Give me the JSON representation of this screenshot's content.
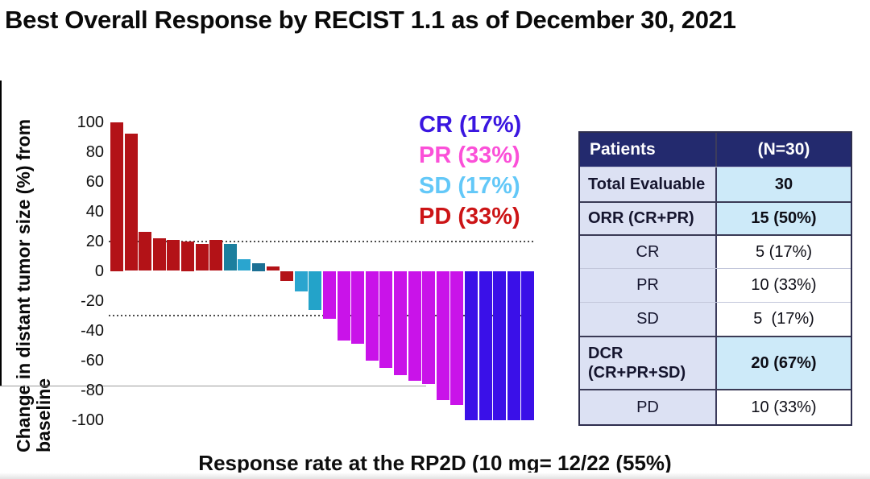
{
  "title": "Best Overall Response by RECIST 1.1 as of December 30, 2021",
  "caption": "Response rate at the RP2D (10 mg= 12/22 (55%)",
  "chart_data": {
    "type": "bar",
    "subtype": "waterfall",
    "title": "",
    "xlabel": "",
    "ylabel": "Change in distant tumor size (%) from\nbaseline",
    "ylim": [
      -100,
      100
    ],
    "yticks": [
      100,
      80,
      60,
      40,
      20,
      0,
      -20,
      -40,
      -60,
      -80,
      -100
    ],
    "reference_lines": [
      20,
      -30
    ],
    "grid": false,
    "legend_position": "top-right-inside",
    "legend": [
      {
        "label": "CR (17%)",
        "color": "#3a16e0"
      },
      {
        "label": "PR (33%)",
        "color": "#fb50d8"
      },
      {
        "label": "SD (17%)",
        "color": "#63c8f8"
      },
      {
        "label": "PD (33%)",
        "color": "#cc1416"
      }
    ],
    "category_colors": {
      "PD": "#b31217",
      "PR": "#c913e9",
      "CR": "#3a10e8",
      "SD": "#23a3c9"
    },
    "bars": [
      {
        "value": 100,
        "category": "PD",
        "color": "#b31217"
      },
      {
        "value": 92,
        "category": "PD",
        "color": "#b31217"
      },
      {
        "value": 26,
        "category": "PD",
        "color": "#b31217"
      },
      {
        "value": 22,
        "category": "PD",
        "color": "#b31217"
      },
      {
        "value": 21,
        "category": "PD",
        "color": "#b31217"
      },
      {
        "value": 20,
        "category": "PD",
        "color": "#b31217"
      },
      {
        "value": 18,
        "category": "PD",
        "color": "#b31217"
      },
      {
        "value": 21,
        "category": "PD",
        "color": "#b31217"
      },
      {
        "value": 18,
        "category": "SD",
        "color": "#1c7f9e"
      },
      {
        "value": 8,
        "category": "SD",
        "color": "#2aa5cf"
      },
      {
        "value": 5,
        "category": "SD",
        "color": "#1b7094"
      },
      {
        "value": 3,
        "category": "PD",
        "color": "#b31217"
      },
      {
        "value": -7,
        "category": "PD",
        "color": "#b31217"
      },
      {
        "value": -14,
        "category": "SD",
        "color": "#2aa5cf"
      },
      {
        "value": -26,
        "category": "SD",
        "color": "#23a3c9"
      },
      {
        "value": -32,
        "category": "PR",
        "color": "#c913e9"
      },
      {
        "value": -47,
        "category": "PR",
        "color": "#c913e9"
      },
      {
        "value": -49,
        "category": "PR",
        "color": "#c913e9"
      },
      {
        "value": -60,
        "category": "PR",
        "color": "#c913e9"
      },
      {
        "value": -65,
        "category": "PR",
        "color": "#c913e9"
      },
      {
        "value": -70,
        "category": "PR",
        "color": "#c913e9"
      },
      {
        "value": -74,
        "category": "PR",
        "color": "#c913e9"
      },
      {
        "value": -76,
        "category": "PR",
        "color": "#c913e9"
      },
      {
        "value": -87,
        "category": "PR",
        "color": "#c913e9"
      },
      {
        "value": -90,
        "category": "PR",
        "color": "#c913e9"
      },
      {
        "value": -100,
        "category": "CR",
        "color": "#3a10e8"
      },
      {
        "value": -100,
        "category": "CR",
        "color": "#3a10e8"
      },
      {
        "value": -100,
        "category": "CR",
        "color": "#3a10e8"
      },
      {
        "value": -100,
        "category": "CR",
        "color": "#3a10e8"
      },
      {
        "value": -100,
        "category": "CR",
        "color": "#3a10e8"
      }
    ]
  },
  "table": {
    "header": {
      "col1": "Patients",
      "col2": "(N=30)"
    },
    "rows": [
      {
        "label": "Total Evaluable",
        "value": "30",
        "bold": true,
        "value_bg": "lightblue",
        "label_align": "left",
        "group_start": false,
        "height": 43
      },
      {
        "label": "ORR (CR+PR)",
        "value": "15 (50%)",
        "bold": true,
        "value_bg": "lightblue",
        "label_align": "left",
        "group_start": true,
        "height": 41
      },
      {
        "label": "CR",
        "value": "5 (17%)",
        "bold": false,
        "value_bg": "white",
        "label_align": "center",
        "group_start": true,
        "height": 42
      },
      {
        "label": "PR",
        "value": "10 (33%)",
        "bold": false,
        "value_bg": "white",
        "label_align": "center",
        "group_start": false,
        "height": 42
      },
      {
        "label": "SD",
        "value": "5  (17%)",
        "bold": false,
        "value_bg": "white",
        "label_align": "center",
        "group_start": false,
        "height": 42
      },
      {
        "label": "DCR\n(CR+PR+SD)",
        "value": "20 (67%)",
        "bold": true,
        "value_bg": "lightblue",
        "label_align": "left",
        "group_start": true,
        "height": 66
      },
      {
        "label": "PD",
        "value": "10 (33%)",
        "bold": false,
        "value_bg": "white",
        "label_align": "center",
        "group_start": true,
        "height": 44
      }
    ]
  }
}
